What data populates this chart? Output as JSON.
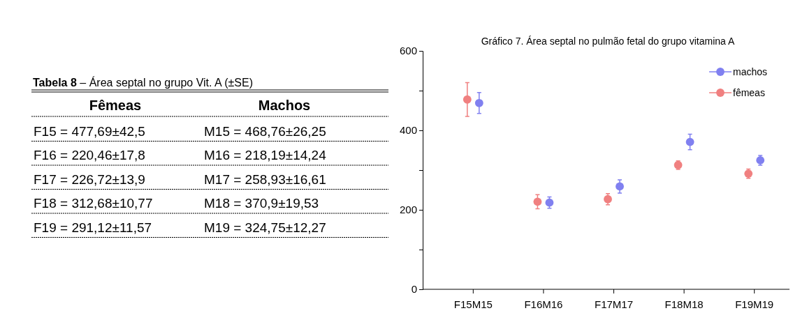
{
  "chart_data": [
    {
      "type": "other",
      "title": "Tabela 8 – Área septal no grupo Vit. A (±SE)",
      "annotations": [
        "Fêmeas",
        "Machos",
        "F15 = 477,69±42,5",
        "M15 = 468,76±26,25",
        "F16 = 220,46±17,8",
        "M16 = 218,19±14,24",
        "F17 = 226,72±13,9",
        "M17 = 258,93±16,61",
        "F18 = 312,68±10,77",
        "M18 = 370,9±19,53",
        "F19 = 291,12±11,57",
        "M19 = 324,75±12,27"
      ]
    },
    {
      "type": "scatter",
      "title": "Gráfico 7. Área septal no pulmão fetal do grupo vitamina A",
      "categories": [
        "F15M15",
        "F16M16",
        "F17M17",
        "F18M18",
        "F19M19"
      ],
      "series": [
        {
          "name": "machos",
          "color": "#8080f0",
          "values": [
            468.76,
            218.19,
            258.93,
            370.9,
            324.75
          ],
          "errors": [
            26.25,
            14.24,
            16.61,
            19.53,
            12.27
          ]
        },
        {
          "name": "fêmeas",
          "color": "#f08080",
          "values": [
            477.69,
            220.46,
            226.72,
            312.68,
            291.12
          ],
          "errors": [
            42.5,
            17.8,
            13.9,
            10.77,
            11.57
          ]
        }
      ],
      "ylim": [
        0,
        600
      ],
      "yticks": [
        0,
        {
          "value": 100,
          "label": null
        },
        200,
        {
          "value": 300,
          "label": null
        },
        400,
        {
          "value": 500,
          "label": null
        },
        600
      ],
      "marker": "circle",
      "legend": "top right",
      "grid": false
    }
  ]
}
